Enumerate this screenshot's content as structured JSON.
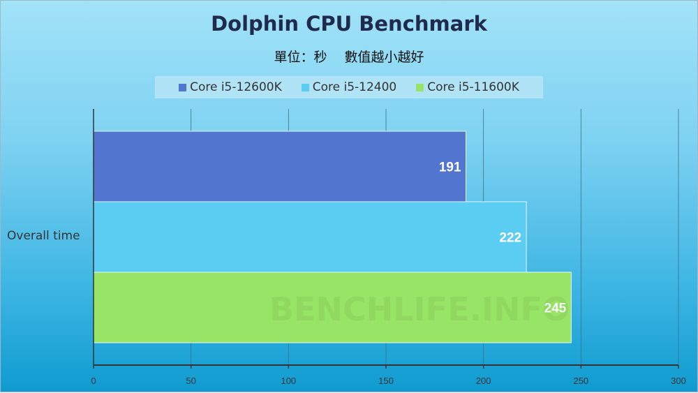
{
  "chart_data": {
    "type": "bar",
    "orientation": "horizontal",
    "title": "Dolphin CPU Benchmark",
    "subtitle": "單位：秒　 數值越小越好",
    "categories": [
      "Overall time"
    ],
    "series": [
      {
        "name": "Core i5-12600K",
        "values": [
          191
        ],
        "color": "#5276d0"
      },
      {
        "name": "Core i5-12400",
        "values": [
          222
        ],
        "color": "#5ccdf2"
      },
      {
        "name": "Core i5-11600K",
        "values": [
          245
        ],
        "color": "#98e466"
      }
    ],
    "xlim": [
      0,
      300
    ],
    "xticks": [
      "0",
      "50",
      "100",
      "150",
      "200",
      "250",
      "300"
    ],
    "grid": true,
    "legend": "top",
    "watermark": "BENCHLIFE.INFO"
  }
}
